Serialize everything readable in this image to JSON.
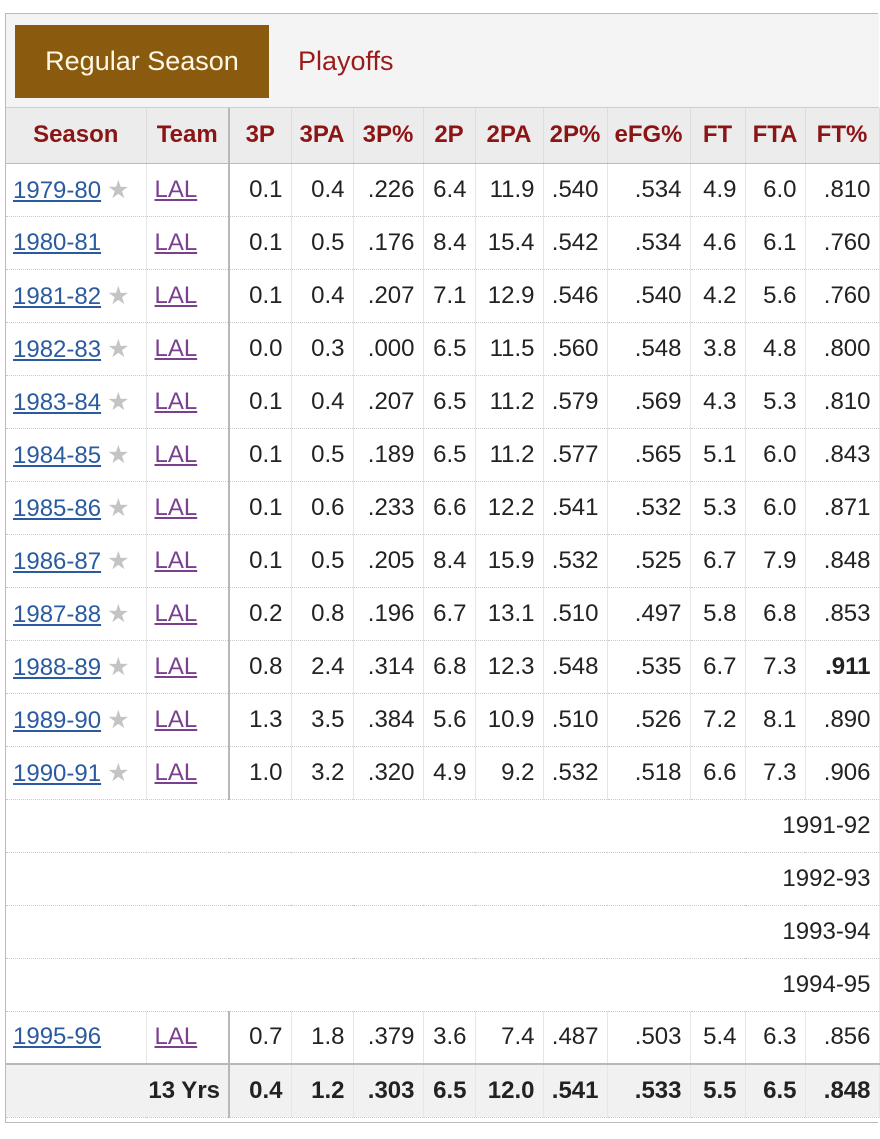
{
  "tabs": {
    "active": "Regular Season",
    "other": "Playoffs"
  },
  "columns": [
    "Season",
    "Team",
    "3P",
    "3PA",
    "3P%",
    "2P",
    "2PA",
    "2P%",
    "eFG%",
    "FT",
    "FTA",
    "FT%"
  ],
  "rows": [
    {
      "season": "1979-80",
      "star": true,
      "team": "LAL",
      "stats": [
        "0.1",
        "0.4",
        ".226",
        "6.4",
        "11.9",
        ".540",
        ".534",
        "4.9",
        "6.0",
        ".810"
      ],
      "bold_index": -1
    },
    {
      "season": "1980-81",
      "star": false,
      "team": "LAL",
      "stats": [
        "0.1",
        "0.5",
        ".176",
        "8.4",
        "15.4",
        ".542",
        ".534",
        "4.6",
        "6.1",
        ".760"
      ],
      "bold_index": -1
    },
    {
      "season": "1981-82",
      "star": true,
      "team": "LAL",
      "stats": [
        "0.1",
        "0.4",
        ".207",
        "7.1",
        "12.9",
        ".546",
        ".540",
        "4.2",
        "5.6",
        ".760"
      ],
      "bold_index": -1
    },
    {
      "season": "1982-83",
      "star": true,
      "team": "LAL",
      "stats": [
        "0.0",
        "0.3",
        ".000",
        "6.5",
        "11.5",
        ".560",
        ".548",
        "3.8",
        "4.8",
        ".800"
      ],
      "bold_index": -1
    },
    {
      "season": "1983-84",
      "star": true,
      "team": "LAL",
      "stats": [
        "0.1",
        "0.4",
        ".207",
        "6.5",
        "11.2",
        ".579",
        ".569",
        "4.3",
        "5.3",
        ".810"
      ],
      "bold_index": -1
    },
    {
      "season": "1984-85",
      "star": true,
      "team": "LAL",
      "stats": [
        "0.1",
        "0.5",
        ".189",
        "6.5",
        "11.2",
        ".577",
        ".565",
        "5.1",
        "6.0",
        ".843"
      ],
      "bold_index": -1
    },
    {
      "season": "1985-86",
      "star": true,
      "team": "LAL",
      "stats": [
        "0.1",
        "0.6",
        ".233",
        "6.6",
        "12.2",
        ".541",
        ".532",
        "5.3",
        "6.0",
        ".871"
      ],
      "bold_index": -1
    },
    {
      "season": "1986-87",
      "star": true,
      "team": "LAL",
      "stats": [
        "0.1",
        "0.5",
        ".205",
        "8.4",
        "15.9",
        ".532",
        ".525",
        "6.7",
        "7.9",
        ".848"
      ],
      "bold_index": -1
    },
    {
      "season": "1987-88",
      "star": true,
      "team": "LAL",
      "stats": [
        "0.2",
        "0.8",
        ".196",
        "6.7",
        "13.1",
        ".510",
        ".497",
        "5.8",
        "6.8",
        ".853"
      ],
      "bold_index": -1
    },
    {
      "season": "1988-89",
      "star": true,
      "team": "LAL",
      "stats": [
        "0.8",
        "2.4",
        ".314",
        "6.8",
        "12.3",
        ".548",
        ".535",
        "6.7",
        "7.3",
        ".911"
      ],
      "bold_index": 9
    },
    {
      "season": "1989-90",
      "star": true,
      "team": "LAL",
      "stats": [
        "1.3",
        "3.5",
        ".384",
        "5.6",
        "10.9",
        ".510",
        ".526",
        "7.2",
        "8.1",
        ".890"
      ],
      "bold_index": -1
    },
    {
      "season": "1990-91",
      "star": true,
      "team": "LAL",
      "stats": [
        "1.0",
        "3.2",
        ".320",
        "4.9",
        "9.2",
        ".532",
        ".518",
        "6.6",
        "7.3",
        ".906"
      ],
      "bold_index": -1
    }
  ],
  "empty_seasons": [
    "1991-92",
    "1992-93",
    "1993-94",
    "1994-95"
  ],
  "last_row": {
    "season": "1995-96",
    "team": "LAL",
    "stats": [
      "0.7",
      "1.8",
      ".379",
      "3.6",
      "7.4",
      ".487",
      ".503",
      "5.4",
      "6.3",
      ".856"
    ]
  },
  "totals": {
    "label": "13 Yrs",
    "stats": [
      "0.4",
      "1.2",
      ".303",
      "6.5",
      "12.0",
      ".541",
      ".533",
      "5.5",
      "6.5",
      ".848"
    ]
  },
  "icons": {
    "all_star": "star-icon"
  },
  "colors": {
    "tab_active_bg": "#8a5a0e",
    "header_text": "#8b1515",
    "season_link": "#2a5aa0",
    "team_link": "#7b3f90"
  }
}
